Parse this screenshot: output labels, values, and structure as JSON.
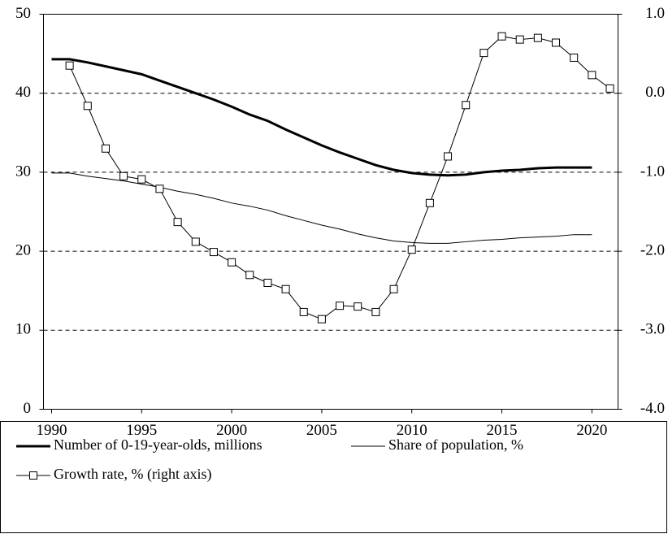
{
  "chart_data": {
    "type": "line",
    "xlim": [
      1989.55,
      2021.45
    ],
    "xticks": [
      1990,
      1995,
      2000,
      2005,
      2010,
      2015,
      2020
    ],
    "ylim": [
      0,
      50
    ],
    "yticks": [
      0,
      10,
      20,
      30,
      40,
      50
    ],
    "y2lim": [
      -4,
      1
    ],
    "y2ticks": [
      {
        "value": -4,
        "label": "-4.0"
      },
      {
        "value": -3,
        "label": "-3.0"
      },
      {
        "value": -2,
        "label": "-2.0"
      },
      {
        "value": -1,
        "label": "-1.0"
      },
      {
        "value": 0,
        "label": "0.0"
      },
      {
        "value": 1,
        "label": "1.0"
      }
    ],
    "grid": true,
    "legend": "bottom",
    "series": [
      {
        "name": "Number of 0-19-year-olds, millions",
        "color": "#000000",
        "line_width": 3,
        "x": [
          1990,
          1991,
          1992,
          1993,
          1994,
          1995,
          1996,
          1997,
          1998,
          1999,
          2000,
          2001,
          2002,
          2003,
          2004,
          2005,
          2006,
          2007,
          2008,
          2009,
          2010,
          2011,
          2012,
          2013,
          2014,
          2015,
          2016,
          2017,
          2018,
          2019,
          2020
        ],
        "values": [
          44.3,
          44.3,
          43.9,
          43.4,
          42.9,
          42.4,
          41.6,
          40.8,
          40.0,
          39.2,
          38.3,
          37.3,
          36.5,
          35.4,
          34.4,
          33.4,
          32.5,
          31.7,
          30.9,
          30.3,
          29.9,
          29.7,
          29.6,
          29.7,
          30.0,
          30.2,
          30.3,
          30.5,
          30.6,
          30.6,
          30.6
        ]
      },
      {
        "name": "Share of population, %",
        "color": "#000000",
        "line_width": 1,
        "x": [
          1990,
          1991,
          1992,
          1993,
          1994,
          1995,
          1996,
          1997,
          1998,
          1999,
          2000,
          2001,
          2002,
          2003,
          2004,
          2005,
          2006,
          2007,
          2008,
          2009,
          2010,
          2011,
          2012,
          2013,
          2014,
          2015,
          2016,
          2017,
          2018,
          2019,
          2020
        ],
        "values": [
          29.9,
          29.9,
          29.5,
          29.2,
          28.9,
          28.5,
          28.1,
          27.6,
          27.2,
          26.7,
          26.1,
          25.7,
          25.2,
          24.5,
          23.9,
          23.3,
          22.8,
          22.2,
          21.7,
          21.3,
          21.1,
          21.0,
          21.0,
          21.2,
          21.4,
          21.5,
          21.7,
          21.8,
          21.9,
          22.1,
          22.1
        ]
      },
      {
        "name": "Growth rate, % (right axis)",
        "color": "#000000",
        "line_width": 1,
        "marker": "square",
        "axis": "y2",
        "x": [
          1991,
          1992,
          1993,
          1994,
          1995,
          1996,
          1997,
          1998,
          1999,
          2000,
          2001,
          2002,
          2003,
          2004,
          2005,
          2006,
          2007,
          2008,
          2009,
          2010,
          2011,
          2012,
          2013,
          2014,
          2015,
          2016,
          2017,
          2018,
          2019,
          2020,
          2021
        ],
        "values": [
          0.35,
          -0.16,
          -0.7,
          -1.05,
          -1.09,
          -1.21,
          -1.63,
          -1.88,
          -2.01,
          -2.14,
          -2.3,
          -2.4,
          -2.48,
          -2.77,
          -2.86,
          -2.69,
          -2.7,
          -2.77,
          -2.48,
          -1.98,
          -1.39,
          -0.8,
          -0.15,
          0.51,
          0.72,
          0.68,
          0.7,
          0.64,
          0.45,
          0.23,
          0.06
        ]
      }
    ]
  }
}
